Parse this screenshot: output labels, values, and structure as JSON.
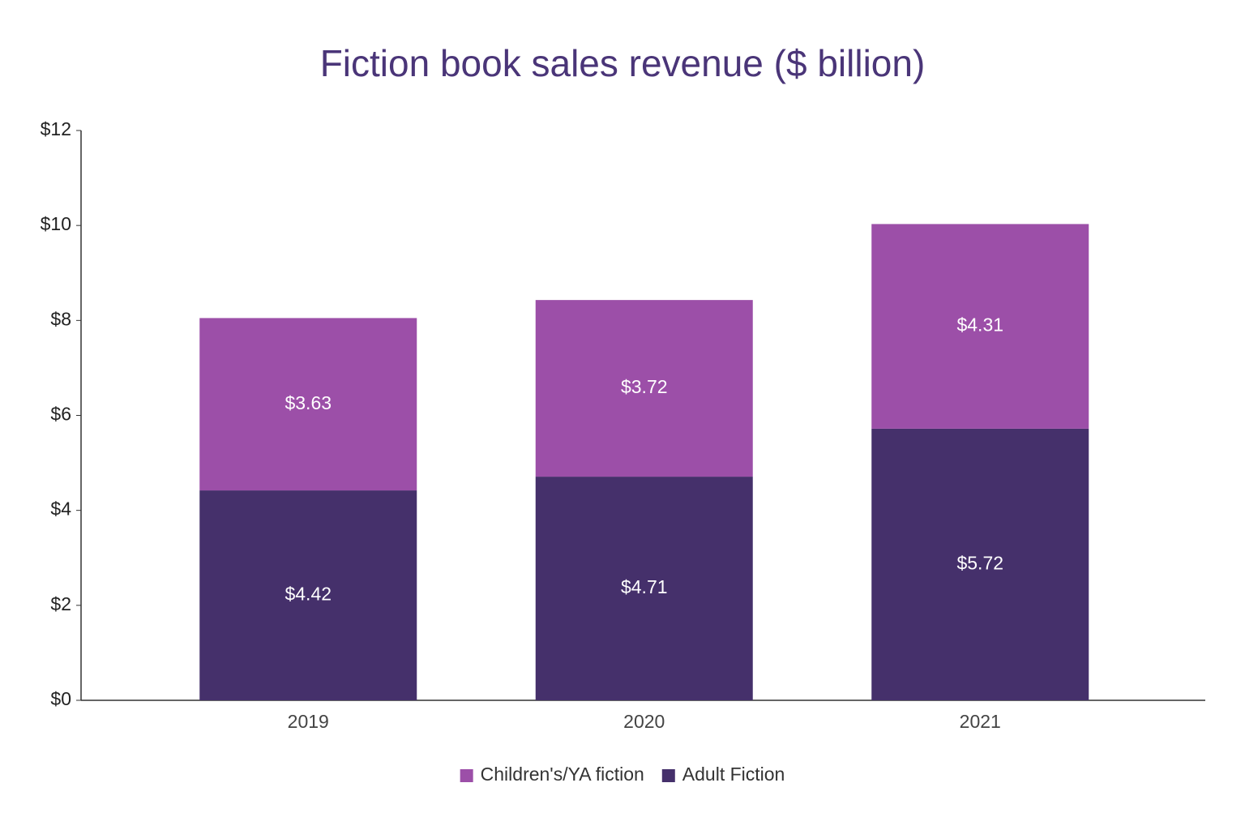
{
  "chart_data": {
    "type": "stacked-bar",
    "title": "Fiction book sales revenue ($ billion)",
    "categories": [
      "2019",
      "2020",
      "2021"
    ],
    "series": [
      {
        "name": "Adult Fiction",
        "color": "#45306b",
        "values": [
          4.42,
          4.71,
          5.72
        ],
        "value_labels": [
          "$4.42",
          "$4.71",
          "$5.72"
        ]
      },
      {
        "name": "Children's/YA fiction",
        "color": "#9c4fa8",
        "values": [
          3.63,
          3.72,
          4.31
        ],
        "value_labels": [
          "$3.63",
          "$3.72",
          "$4.31"
        ]
      }
    ],
    "ylim": [
      0,
      12
    ],
    "yticks": [
      {
        "value": 0,
        "label": "$0"
      },
      {
        "value": 2,
        "label": "$2"
      },
      {
        "value": 4,
        "label": "$4"
      },
      {
        "value": 6,
        "label": "$6"
      },
      {
        "value": 8,
        "label": "$8"
      },
      {
        "value": 10,
        "label": "$10"
      },
      {
        "value": 12,
        "label": "$12"
      }
    ],
    "grid": false
  }
}
